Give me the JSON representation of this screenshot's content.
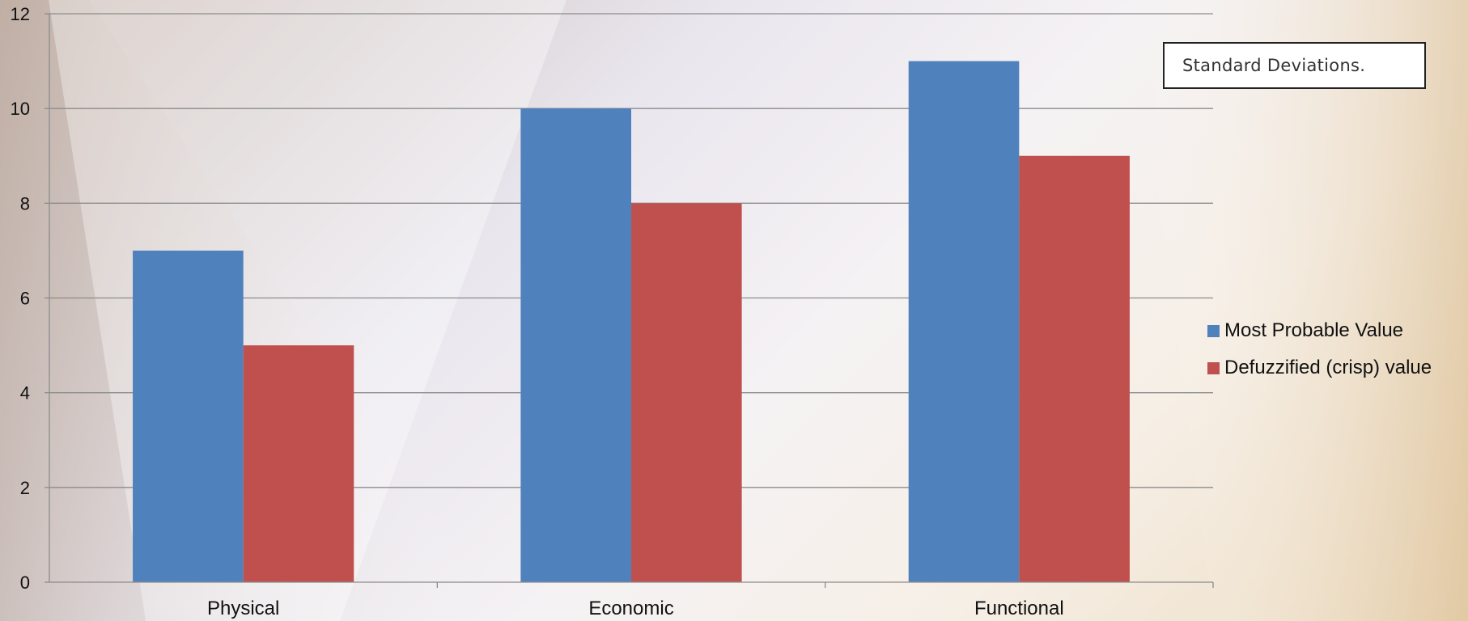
{
  "annotation": "Standard Deviations.",
  "colors": {
    "series_1": "#4F81BD",
    "series_2": "#C0504D",
    "gridline": "#8c8c8c",
    "text": "#111111"
  },
  "chart_data": {
    "type": "bar",
    "title": "",
    "xlabel": "",
    "ylabel": "",
    "categories": [
      "Physical",
      "Economic",
      "Functional"
    ],
    "series": [
      {
        "name": "Most Probable Value",
        "values": [
          7,
          10,
          11
        ]
      },
      {
        "name": "Defuzzified (crisp) value",
        "values": [
          5,
          8,
          9
        ]
      }
    ],
    "ylim": [
      0,
      12
    ],
    "yticks": [
      0,
      2,
      4,
      6,
      8,
      10,
      12
    ],
    "grid": true,
    "legend_position": "right",
    "annotations": [
      "Standard Deviations."
    ]
  }
}
